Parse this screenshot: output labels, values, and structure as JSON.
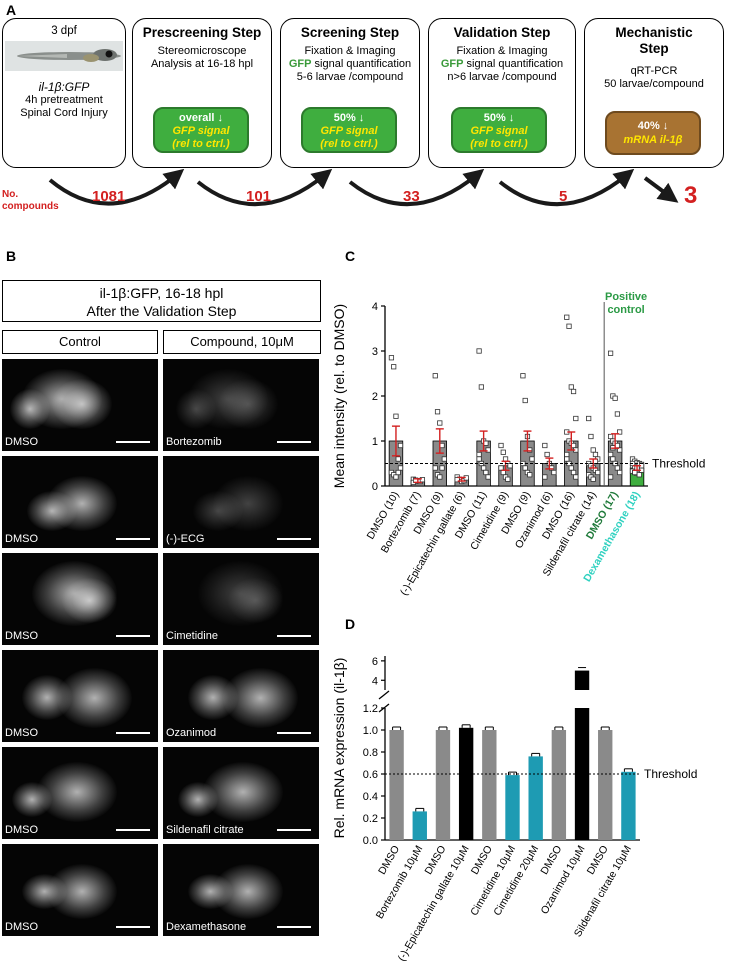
{
  "panel_a": {
    "letter": "A",
    "box1": {
      "stage": "3 dpf",
      "line1": "il-1β:GFP",
      "line2": "4h pretreatment",
      "line3": "Spinal Cord Injury"
    },
    "box2": {
      "title": "Prescreening Step",
      "line1": "Stereomicroscope",
      "line2": "Analysis at 16-18 hpl",
      "badge1": "overall",
      "badge2": "GFP signal",
      "badge3": "(rel to ctrl.)"
    },
    "box3": {
      "title": "Screening Step",
      "line1": "Fixation & Imaging",
      "line2a": "GFP",
      "line2b": " signal quantification",
      "line3": "5-6 larvae /compound",
      "badge1": "50%",
      "badge2": "GFP signal",
      "badge3": "(rel to ctrl.)"
    },
    "box4": {
      "title": "Validation Step",
      "line1": "Fixation & Imaging",
      "line2a": "GFP",
      "line2b": " signal quantification",
      "line3": "n>6 larvae /compound",
      "badge1": "50%",
      "badge2": "GFP signal",
      "badge3": "(rel to ctrl.)"
    },
    "box5": {
      "title1": "Mechanistic",
      "title2": "Step",
      "line1": "qRT-PCR",
      "line2": "50 larvae/compound",
      "badge1": "40%",
      "badge2": "mRNA il-1β"
    },
    "counts_label1": "No.",
    "counts_label2": "compounds",
    "counts": [
      "1081",
      "101",
      "33",
      "5",
      "3"
    ],
    "arrow_color": "#1a1a1a",
    "count_color": "#d32020"
  },
  "panel_b": {
    "letter": "B",
    "title1": "il-1β:GFP, 16-18 hpl",
    "title2": "After the Validation Step",
    "col_control": "Control",
    "col_compound": "Compound, 10μM",
    "rows": [
      {
        "control": "DMSO",
        "compound": "Bortezomib"
      },
      {
        "control": "DMSO",
        "compound": "(-)-ECG"
      },
      {
        "control": "DMSO",
        "compound": "Cimetidine"
      },
      {
        "control": "DMSO",
        "compound": "Ozanimod"
      },
      {
        "control": "DMSO",
        "compound": "Sildenafil citrate"
      },
      {
        "control": "DMSO",
        "compound": "Dexamethasone"
      }
    ]
  },
  "panel_c": {
    "letter": "C",
    "positive_control_1": "Positive",
    "positive_control_2": "control",
    "threshold_label": "Threshold"
  },
  "panel_d": {
    "letter": "D",
    "threshold_label": "Threshold"
  },
  "chart_data": [
    {
      "type": "bar",
      "ylabel": "Mean intensity (rel. to DMSO)",
      "ylim": [
        0,
        4
      ],
      "yticks": [
        0,
        1,
        2,
        3,
        4
      ],
      "threshold": 0.5,
      "categories": [
        "DMSO (10)",
        "Bortezomib (7)",
        "DMSO (9)",
        "(-)-Epicatechin gallate (6)",
        "DMSO (11)",
        "Cimetidine (9)",
        "DMSO (9)",
        "Ozanimod (6)",
        "DMSO (16)",
        "Sildenafil citrate (14)",
        "DMSO (17)",
        "Dexamethasone (18)"
      ],
      "values": [
        1.0,
        0.12,
        1.0,
        0.15,
        1.0,
        0.45,
        1.0,
        0.5,
        1.0,
        0.5,
        1.0,
        0.4
      ],
      "errors": [
        0.33,
        0.04,
        0.27,
        0.04,
        0.22,
        0.1,
        0.22,
        0.12,
        0.2,
        0.1,
        0.16,
        0.05
      ],
      "bar_colors": [
        "#8a8a8a",
        "#8a8a8a",
        "#8a8a8a",
        "#8a8a8a",
        "#8a8a8a",
        "#8a8a8a",
        "#8a8a8a",
        "#8a8a8a",
        "#8a8a8a",
        "#8a8a8a",
        "#8a8a8a",
        "#3fae3f"
      ],
      "label_colors": [
        "#000",
        "#000",
        "#000",
        "#000",
        "#000",
        "#000",
        "#000",
        "#000",
        "#000",
        "#000",
        "#1f7a3a",
        "#2fd1c0"
      ],
      "points": [
        [
          2.85,
          2.65,
          1.55,
          0.6,
          0.4,
          0.3,
          0.25,
          0.2,
          0.3,
          0.9
        ],
        [
          0.15,
          0.1,
          0.12,
          0.1,
          0.14,
          0.08,
          0.13
        ],
        [
          2.45,
          1.65,
          1.4,
          0.9,
          0.6,
          0.4,
          0.25,
          0.2,
          0.4
        ],
        [
          0.2,
          0.15,
          0.1,
          0.12,
          0.18,
          0.14
        ],
        [
          3.0,
          2.2,
          1.0,
          0.95,
          0.8,
          0.7,
          0.5,
          0.4,
          0.3,
          0.2,
          0.6
        ],
        [
          0.9,
          0.75,
          0.6,
          0.5,
          0.45,
          0.4,
          0.3,
          0.2,
          0.15
        ],
        [
          2.45,
          1.9,
          1.1,
          0.8,
          0.6,
          0.5,
          0.4,
          0.3,
          0.25
        ],
        [
          0.9,
          0.7,
          0.5,
          0.4,
          0.3,
          0.2
        ],
        [
          3.75,
          3.55,
          2.2,
          2.1,
          1.5,
          1.2,
          1.0,
          0.95,
          0.9,
          0.8,
          0.7,
          0.5,
          0.4,
          0.3,
          0.2,
          0.6
        ],
        [
          1.5,
          1.1,
          0.8,
          0.7,
          0.6,
          0.5,
          0.45,
          0.4,
          0.35,
          0.3,
          0.25,
          0.2,
          0.15,
          0.55
        ],
        [
          2.95,
          2.0,
          1.95,
          1.6,
          1.2,
          1.1,
          1.0,
          0.95,
          0.9,
          0.8,
          0.7,
          0.6,
          0.5,
          0.4,
          0.3,
          0.2,
          0.85
        ],
        [
          0.6,
          0.55,
          0.52,
          0.5,
          0.48,
          0.45,
          0.42,
          0.4,
          0.38,
          0.35,
          0.33,
          0.3,
          0.28,
          0.25,
          0.45,
          0.5,
          0.3,
          0.4
        ]
      ]
    },
    {
      "type": "bar",
      "ylabel": "Rel. mRNA expression (il-1β)",
      "yticks_lower": [
        0.0,
        0.2,
        0.4,
        0.6,
        0.8,
        1.0,
        1.2
      ],
      "yticks_upper": [
        4,
        6
      ],
      "ylim_lower": [
        0,
        1.2
      ],
      "ylim_upper": [
        3,
        6.5
      ],
      "threshold": 0.6,
      "categories": [
        "DMSO",
        "Bortezomib 10μM",
        "DMSO",
        "(-)-Epicatechin gallate 10μM",
        "DMSO",
        "Cimetidine 10μM",
        "Cimetidine 20μM",
        "DMSO",
        "Ozanimod 10μM",
        "DMSO",
        "Sildenafil citrate 10μM"
      ],
      "values": [
        1.0,
        0.26,
        1.0,
        1.02,
        1.0,
        0.59,
        0.76,
        1.0,
        5.0,
        1.0,
        0.62
      ],
      "bar_colors": [
        "#8a8a8a",
        "#1e9bb3",
        "#8a8a8a",
        "#000000",
        "#8a8a8a",
        "#1e9bb3",
        "#1e9bb3",
        "#8a8a8a",
        "#000000",
        "#8a8a8a",
        "#1e9bb3"
      ]
    }
  ]
}
